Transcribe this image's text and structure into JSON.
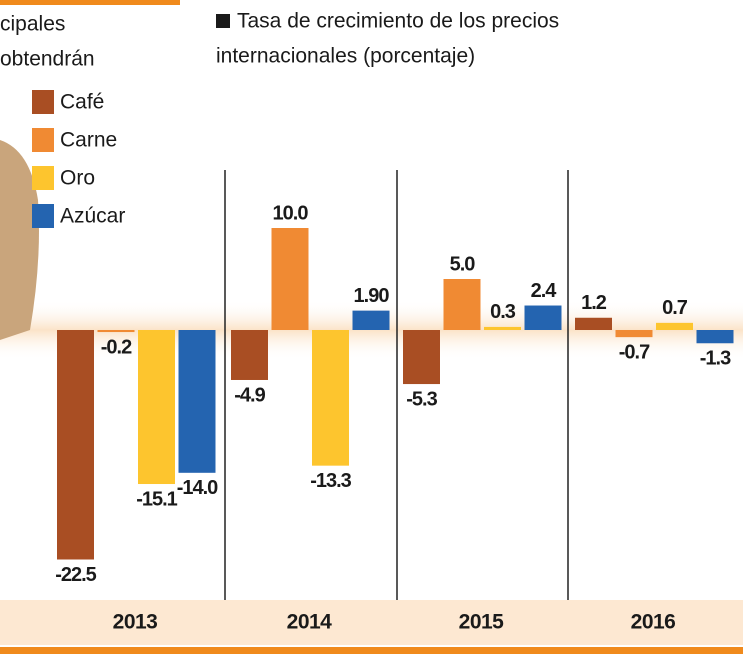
{
  "chart_data": {
    "type": "bar",
    "title": [
      "Tasa de crecimiento de los precios",
      "internacionales (porcentaje)"
    ],
    "fragments": [
      "cipales",
      "obtendrán"
    ],
    "categories": [
      "2013",
      "2014",
      "2015",
      "2016"
    ],
    "series": [
      {
        "name": "Café",
        "color": "#a94e23",
        "values": [
          -22.5,
          -4.9,
          -5.3,
          1.2
        ],
        "value_labels": [
          "-22.5",
          "-4.9",
          "-5.3",
          "1.2"
        ]
      },
      {
        "name": "Carne",
        "color": "#f08a33",
        "values": [
          -0.2,
          10.0,
          5.0,
          -0.7
        ],
        "value_labels": [
          "-0.2",
          "10.0",
          "5.0",
          "-0.7"
        ]
      },
      {
        "name": "Oro",
        "color": "#fdc52e",
        "values": [
          -15.1,
          -13.3,
          0.3,
          0.7
        ],
        "value_labels": [
          "-15.1",
          "-13.3",
          "0.3",
          "0.7"
        ]
      },
      {
        "name": "Azúcar",
        "color": "#2464b0",
        "values": [
          -14.0,
          1.9,
          2.4,
          -1.3
        ],
        "value_labels": [
          "-14.0",
          "1.90",
          "2.4",
          "-1.3"
        ]
      }
    ]
  }
}
